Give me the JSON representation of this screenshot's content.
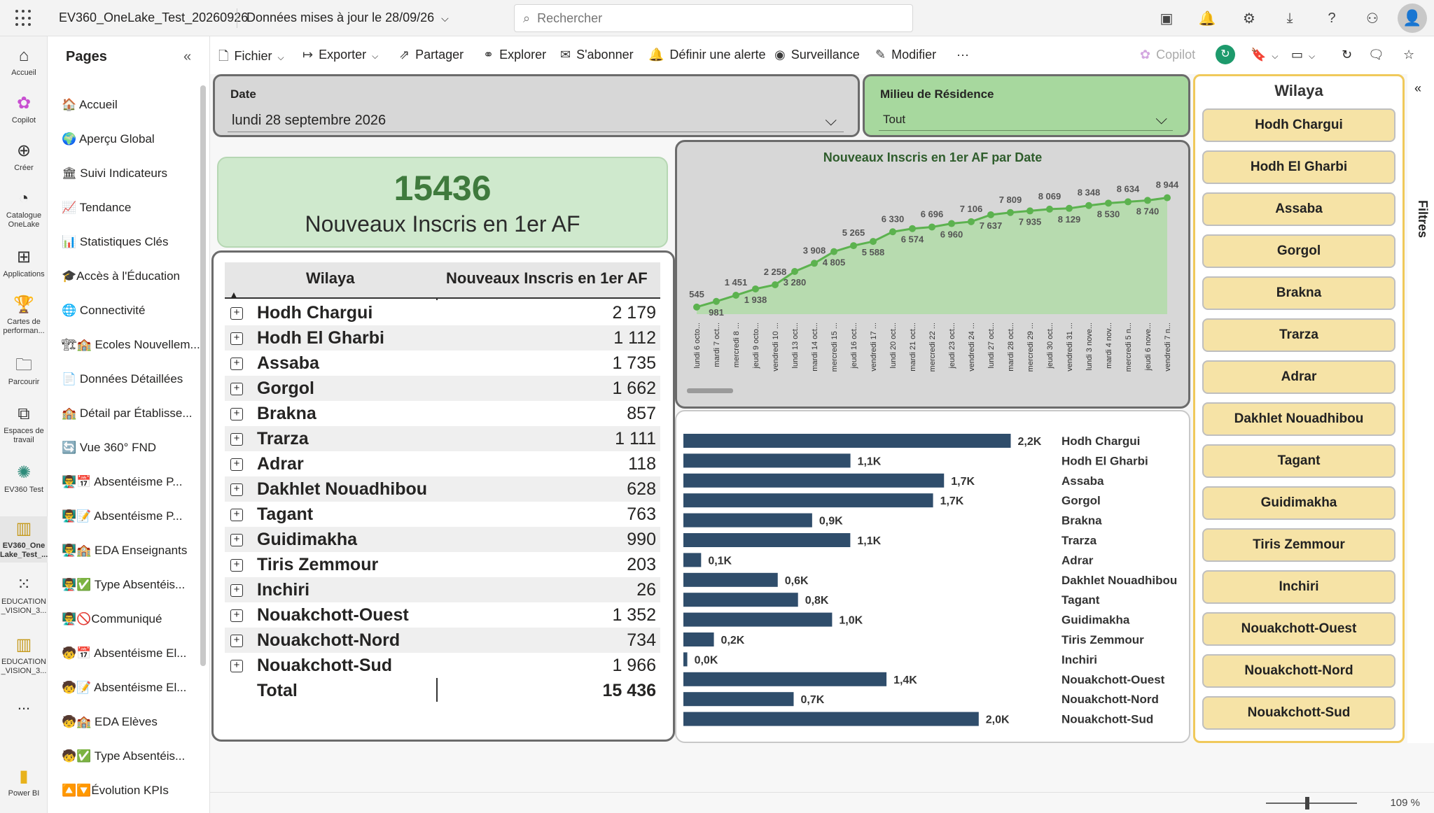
{
  "app": {
    "workspace_name": "EV360_OneLake_Test_20260926",
    "updated_label": "Données mises à jour le 28/09/26",
    "search_placeholder": "Rechercher"
  },
  "leftnav": [
    {
      "label": "Accueil",
      "icon": "home-icon"
    },
    {
      "label": "Copilot",
      "icon": "copilot-icon"
    },
    {
      "label": "Créer",
      "icon": "plus-icon"
    },
    {
      "label": "Catalogue OneLake",
      "icon": "catalog-icon"
    },
    {
      "label": "Applications",
      "icon": "apps-icon"
    },
    {
      "label": "Cartes de performan...",
      "icon": "trophy-icon"
    },
    {
      "label": "Parcourir",
      "icon": "folder-icon"
    },
    {
      "label": "Espaces de travail",
      "icon": "workspaces-icon"
    },
    {
      "label": "EV360 Test",
      "icon": "workspace-icon"
    },
    {
      "label": "EV360_One Lake_Test_...",
      "icon": "report-icon"
    },
    {
      "label": "EDUCATION _VISION_3...",
      "icon": "dataset-icon"
    },
    {
      "label": "EDUCATION _VISION_3...",
      "icon": "report-icon"
    },
    {
      "label": "...",
      "icon": "more-icon"
    },
    {
      "label": "Power BI",
      "icon": "powerbi-icon"
    }
  ],
  "pages": {
    "title": "Pages",
    "items": [
      "🏠 Accueil",
      "🌍 Aperçu Global",
      "🏛 Suivi Indicateurs",
      "📈 Tendance",
      "📊 Statistiques Clés",
      "🎓Accès à l'Éducation",
      "🌐 Connectivité",
      "🏗🏫 Ecoles Nouvellem...",
      "📄 Données Détaillées",
      "🏫 Détail par Établisse...",
      "🔄 Vue 360° FND",
      "👨‍🏫📅 Absentéisme P...",
      "👨‍🏫📝 Absentéisme P...",
      "👨‍🏫🏫 EDA Enseignants",
      "👨‍🏫✅ Type Absentéis...",
      "👨‍🏫🚫Communiqué",
      "🧒📅 Absentéisme El...",
      "🧒📝 Absentéisme El...",
      "🧒🏫 EDA Elèves",
      "🧒✅ Type Absentéis...",
      "🔼🔽Évolution KPIs"
    ]
  },
  "toolbar": {
    "fichier": "Fichier",
    "exporter": "Exporter",
    "partager": "Partager",
    "explorer": "Explorer",
    "sabonner": "S'abonner",
    "alerte": "Définir une alerte",
    "surveillance": "Surveillance",
    "modifier": "Modifier",
    "more": "···",
    "copilot": "Copilot"
  },
  "slicers": {
    "date_label": "Date",
    "date_value": "lundi 28 septembre 2026",
    "milieu_label": "Milieu de Résidence",
    "milieu_value": "Tout"
  },
  "kpi": {
    "value": "15436",
    "caption": "Nouveaux Inscris en 1er AF"
  },
  "table": {
    "col_wilaya": "Wilaya",
    "col_value": "Nouveaux Inscris en 1er AF",
    "rows": [
      {
        "name": "Hodh Chargui",
        "value": "2 179"
      },
      {
        "name": "Hodh El Gharbi",
        "value": "1 112"
      },
      {
        "name": "Assaba",
        "value": "1 735"
      },
      {
        "name": "Gorgol",
        "value": "1 662"
      },
      {
        "name": "Brakna",
        "value": "857"
      },
      {
        "name": "Trarza",
        "value": "1 111"
      },
      {
        "name": "Adrar",
        "value": "118"
      },
      {
        "name": "Dakhlet Nouadhibou",
        "value": "628"
      },
      {
        "name": "Tagant",
        "value": "763"
      },
      {
        "name": "Guidimakha",
        "value": "990"
      },
      {
        "name": "Tiris Zemmour",
        "value": "203"
      },
      {
        "name": "Inchiri",
        "value": "26"
      },
      {
        "name": "Nouakchott-Ouest",
        "value": "1 352"
      },
      {
        "name": "Nouakchott-Nord",
        "value": "734"
      },
      {
        "name": "Nouakchott-Sud",
        "value": "1 966"
      }
    ],
    "total_label": "Total",
    "total_value": "15 436"
  },
  "wilaya_slicer": {
    "title": "Wilaya",
    "items": [
      "Hodh Chargui",
      "Hodh El Gharbi",
      "Assaba",
      "Gorgol",
      "Brakna",
      "Trarza",
      "Adrar",
      "Dakhlet Nouadhibou",
      "Tagant",
      "Guidimakha",
      "Tiris Zemmour",
      "Inchiri",
      "Nouakchott-Ouest",
      "Nouakchott-Nord",
      "Nouakchott-Sud"
    ]
  },
  "filters_label": "Filtres",
  "zoom": "109 %",
  "colors": {
    "line_green": "#5cb24f",
    "area_green": "#b7dbaf",
    "bar_navy": "#2f4d6b",
    "slicer_gold": "#f6e3a6",
    "kpi_green": "#3f7a3d"
  },
  "chart_data": [
    {
      "type": "line",
      "title": "Nouveaux Inscris en 1er AF par Date",
      "x": [
        "lundi 6 octo...",
        "mardi 7 oct...",
        "mercredi 8 ...",
        "jeudi 9 octo...",
        "vendredi 10 ...",
        "lundi 13 oct...",
        "mardi 14 oct...",
        "mercredi 15 ...",
        "jeudi 16 oct...",
        "vendredi 17 ...",
        "lundi 20 oct...",
        "mardi 21 oct...",
        "mercredi 22 ...",
        "jeudi 23 oct...",
        "vendredi 24 ...",
        "lundi 27 oct...",
        "mardi 28 oct...",
        "mercredi 29 ...",
        "jeudi 30 oct...",
        "vendredi 31 ...",
        "lundi 3 nove...",
        "mardi 4 nov...",
        "mercredi 5 n...",
        "jeudi 6 nove...",
        "vendredi 7 n..."
      ],
      "series": [
        {
          "values": [
            545,
            981,
            1451,
            1938,
            2258,
            3280,
            3908,
            4805,
            5265,
            5588,
            6330,
            6574,
            6696,
            6960,
            7106,
            7637,
            7809,
            7935,
            8069,
            8129,
            8348,
            8530,
            8634,
            8740,
            8944
          ]
        }
      ],
      "labels": [
        "545",
        "981",
        "1 451",
        "1 938",
        "2 258",
        "3 280",
        "3 908",
        "4 805",
        "5 265",
        "5 588",
        "6 330",
        "6 574",
        "6 696",
        "6 960",
        "7 106",
        "7 637",
        "7 809",
        "7 935",
        "8 069",
        "8 129",
        "8 348",
        "8 530",
        "8 634",
        "8 740",
        "8 944"
      ],
      "ylim": [
        0,
        10000
      ]
    },
    {
      "type": "bar",
      "orientation": "horizontal",
      "categories": [
        "Hodh Chargui",
        "Hodh El Gharbi",
        "Assaba",
        "Gorgol",
        "Brakna",
        "Trarza",
        "Adrar",
        "Dakhlet Nouadhibou",
        "Tagant",
        "Guidimakha",
        "Tiris Zemmour",
        "Inchiri",
        "Nouakchott-Ouest",
        "Nouakchott-Nord",
        "Nouakchott-Sud"
      ],
      "values": [
        2179,
        1112,
        1735,
        1662,
        857,
        1111,
        118,
        628,
        763,
        990,
        203,
        26,
        1352,
        734,
        1966
      ],
      "labels": [
        "2,2K",
        "1,1K",
        "1,7K",
        "1,7K",
        "0,9K",
        "1,1K",
        "0,1K",
        "0,6K",
        "0,8K",
        "1,0K",
        "0,2K",
        "0,0K",
        "1,4K",
        "0,7K",
        "2,0K"
      ]
    }
  ]
}
